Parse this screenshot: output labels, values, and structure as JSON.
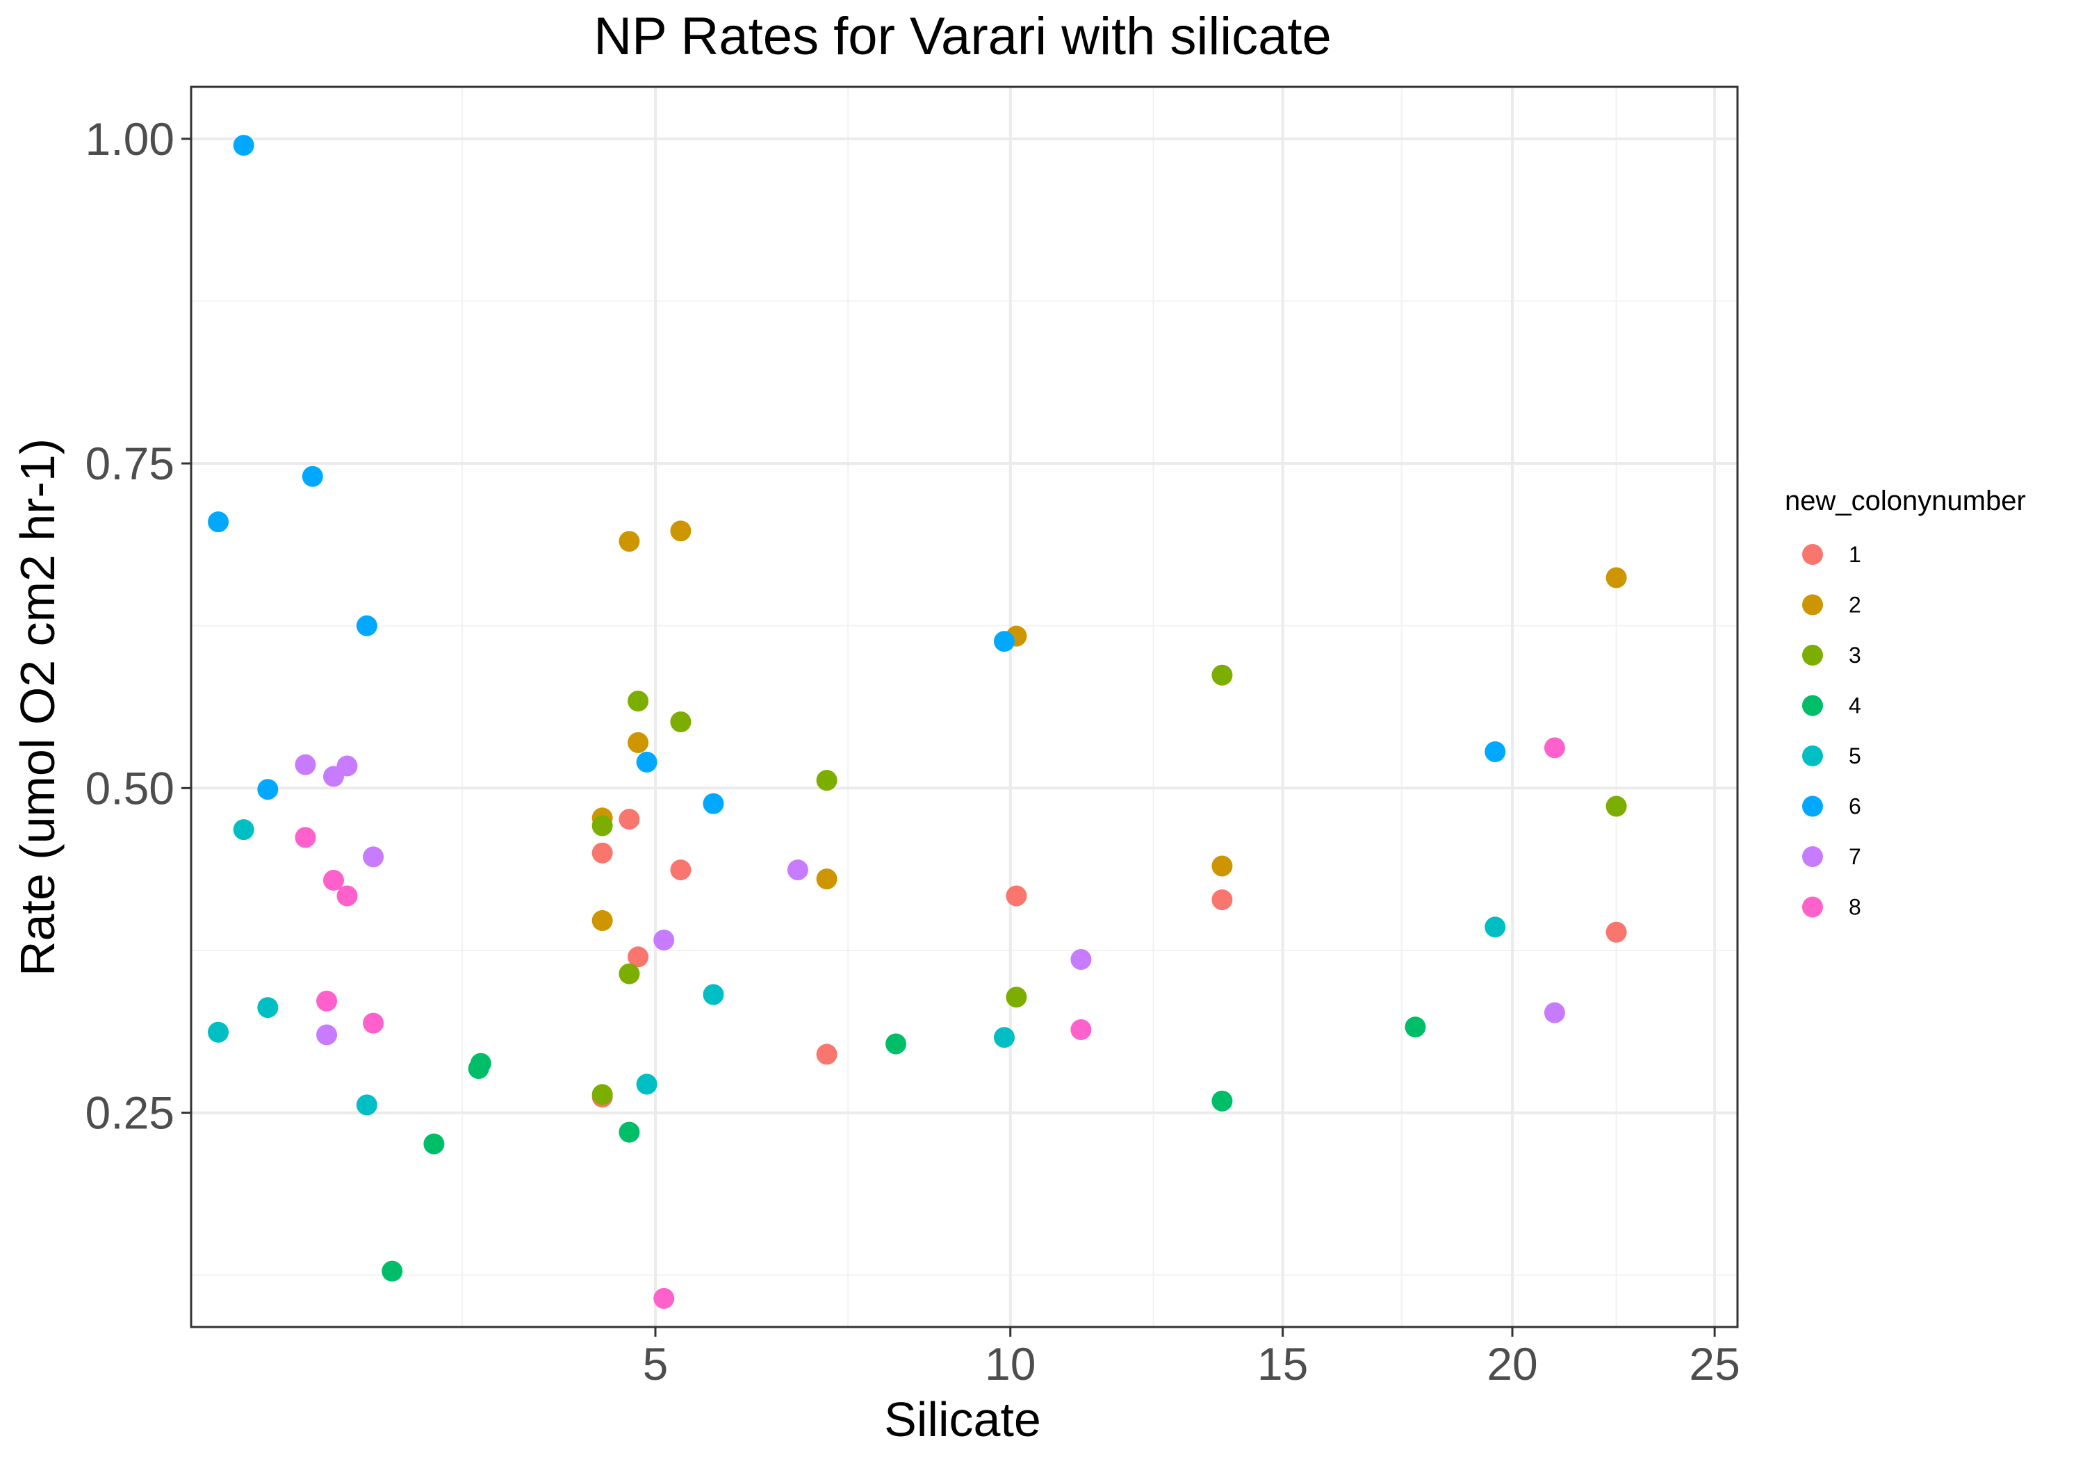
{
  "chart_data": {
    "type": "scatter",
    "title": "NP Rates for Varari with silicate",
    "xlabel": "Silicate",
    "ylabel": "Rate (umol O2 cm2 hr-1)",
    "x_scale": "sqrt",
    "xlim": [
      1.05,
      25.6
    ],
    "ylim": [
      0.085,
      1.04
    ],
    "x_ticks": [
      5,
      10,
      15,
      20,
      25
    ],
    "x_tick_labels": [
      "5",
      "10",
      "15",
      "20",
      "25"
    ],
    "y_ticks": [
      0.25,
      0.5,
      0.75,
      1.0
    ],
    "y_tick_labels": [
      "0.25",
      "0.50",
      "0.75",
      "1.00"
    ],
    "grid": true,
    "legend_title": "new_colonynumber",
    "legend_position": "right",
    "series": [
      {
        "name": "1",
        "color": "#F8766D",
        "points": [
          [
            4.4,
            0.45
          ],
          [
            4.7,
            0.476
          ],
          [
            5.3,
            0.437
          ],
          [
            4.4,
            0.262
          ],
          [
            4.8,
            0.37
          ],
          [
            7.2,
            0.295
          ],
          [
            10.1,
            0.417
          ],
          [
            13.8,
            0.414
          ],
          [
            22.5,
            0.389
          ]
        ]
      },
      {
        "name": "2",
        "color": "#CD9600",
        "points": [
          [
            4.7,
            0.69
          ],
          [
            5.3,
            0.698
          ],
          [
            4.8,
            0.535
          ],
          [
            4.4,
            0.477
          ],
          [
            4.4,
            0.398
          ],
          [
            7.2,
            0.43
          ],
          [
            10.1,
            0.617
          ],
          [
            13.8,
            0.44
          ],
          [
            22.5,
            0.662
          ]
        ]
      },
      {
        "name": "3",
        "color": "#7CAE00",
        "points": [
          [
            4.8,
            0.567
          ],
          [
            5.3,
            0.551
          ],
          [
            4.4,
            0.471
          ],
          [
            4.7,
            0.357
          ],
          [
            4.4,
            0.264
          ],
          [
            7.2,
            0.506
          ],
          [
            10.1,
            0.339
          ],
          [
            13.8,
            0.587
          ],
          [
            22.5,
            0.486
          ]
        ]
      },
      {
        "name": "4",
        "color": "#00BE67",
        "points": [
          [
            2.4,
            0.128
          ],
          [
            2.75,
            0.226
          ],
          [
            3.15,
            0.284
          ],
          [
            3.17,
            0.288
          ],
          [
            4.7,
            0.235
          ],
          [
            8.2,
            0.303
          ],
          [
            13.8,
            0.259
          ],
          [
            17.8,
            0.316
          ]
        ]
      },
      {
        "name": "5",
        "color": "#00BFC4",
        "points": [
          [
            1.2,
            0.312
          ],
          [
            1.35,
            0.468
          ],
          [
            1.5,
            0.331
          ],
          [
            2.2,
            0.256
          ],
          [
            4.9,
            0.272
          ],
          [
            5.7,
            0.341
          ],
          [
            9.9,
            0.308
          ],
          [
            19.6,
            0.393
          ]
        ]
      },
      {
        "name": "6",
        "color": "#00A9FF",
        "points": [
          [
            1.35,
            0.995
          ],
          [
            1.2,
            0.705
          ],
          [
            1.8,
            0.74
          ],
          [
            2.2,
            0.625
          ],
          [
            1.5,
            0.499
          ],
          [
            4.9,
            0.52
          ],
          [
            5.7,
            0.488
          ],
          [
            9.9,
            0.613
          ],
          [
            19.6,
            0.528
          ]
        ]
      },
      {
        "name": "7",
        "color": "#C77CFF",
        "points": [
          [
            1.75,
            0.518
          ],
          [
            1.95,
            0.509
          ],
          [
            2.05,
            0.517
          ],
          [
            2.25,
            0.447
          ],
          [
            1.9,
            0.31
          ],
          [
            5.1,
            0.383
          ],
          [
            6.8,
            0.437
          ],
          [
            11.2,
            0.368
          ],
          [
            21.0,
            0.327
          ]
        ]
      },
      {
        "name": "8",
        "color": "#FF61CC",
        "points": [
          [
            1.75,
            0.462
          ],
          [
            1.95,
            0.429
          ],
          [
            2.05,
            0.417
          ],
          [
            1.9,
            0.336
          ],
          [
            2.25,
            0.319
          ],
          [
            5.1,
            0.107
          ],
          [
            11.2,
            0.314
          ],
          [
            21.0,
            0.531
          ]
        ]
      }
    ]
  }
}
